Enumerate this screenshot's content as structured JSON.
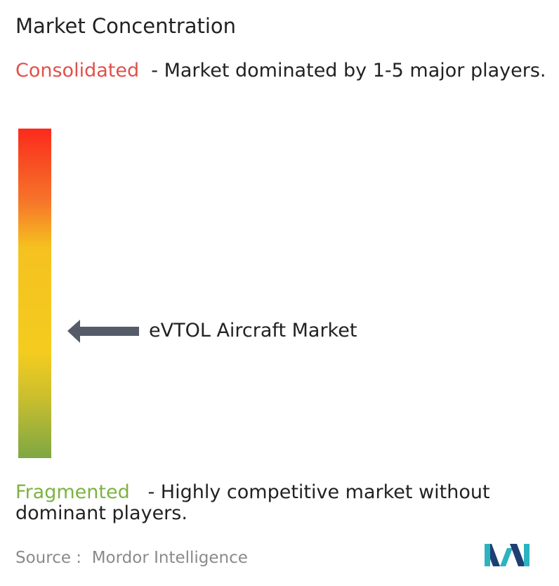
{
  "title": "Market Concentration",
  "top": {
    "label": "Consolidated",
    "description": "- Market dominated by 1-5 major players."
  },
  "marker": {
    "label": "eVTOL Aircraft Market"
  },
  "bottom": {
    "label": "Fragmented",
    "description": "- Highly competitive market without dominant players."
  },
  "source": {
    "prefix": "Source :",
    "name": "Mordor Intelligence"
  }
}
